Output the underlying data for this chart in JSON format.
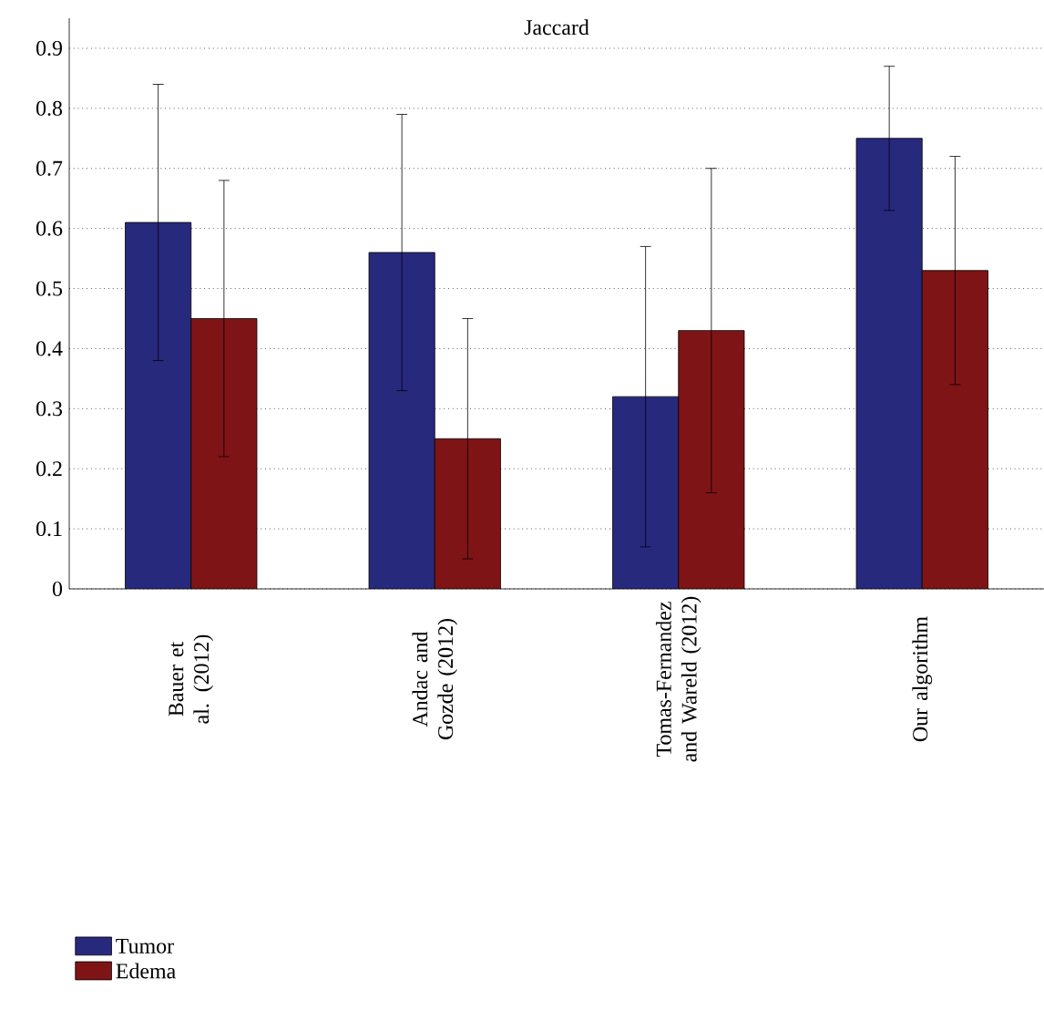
{
  "chart_data": {
    "type": "bar",
    "title": "Jaccard",
    "categories": [
      "Bauer et al. (2012)",
      "Andac and Gozde (2012)",
      "Tomas-Fernandez and Wareld (2012)",
      "Our algorithm"
    ],
    "series": [
      {
        "name": "Tumor",
        "color": "#27297d",
        "values": [
          0.61,
          0.56,
          0.32,
          0.75
        ],
        "errors": [
          0.23,
          0.23,
          0.25,
          0.12
        ]
      },
      {
        "name": "Edema",
        "color": "#7f1416",
        "values": [
          0.45,
          0.25,
          0.43,
          0.53
        ],
        "errors": [
          0.23,
          0.2,
          0.27,
          0.19
        ]
      }
    ],
    "ylim": [
      0,
      0.95
    ],
    "yticks": [
      0,
      0.1,
      0.2,
      0.3,
      0.4,
      0.5,
      0.6,
      0.7,
      0.8,
      0.9
    ],
    "grid": "y",
    "legend": "bottom left"
  }
}
